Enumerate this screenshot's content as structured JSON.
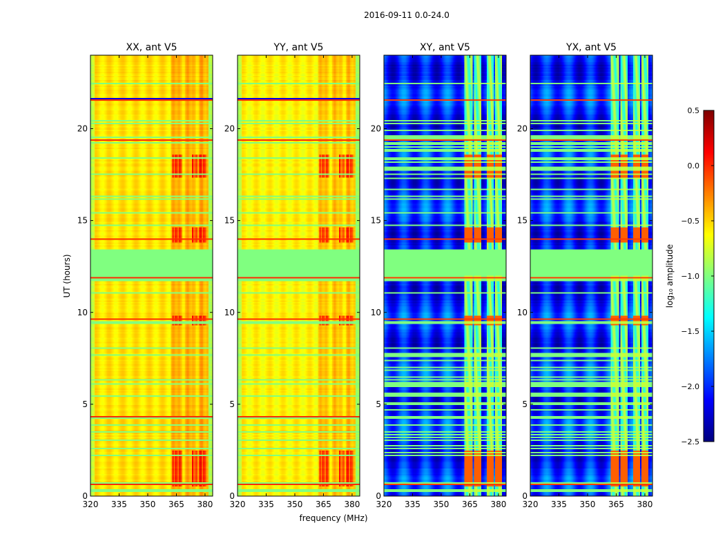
{
  "chart_data": {
    "type": "heatmap",
    "suptitle": "2016-09-11 0.0-24.0",
    "xlabel": "frequency (MHz)",
    "ylabel": "UT (hours)",
    "xlim": [
      320,
      384
    ],
    "ylim": [
      0,
      24
    ],
    "xticks": [
      "320",
      "335",
      "350",
      "365",
      "380"
    ],
    "yticks": [
      "0",
      "5",
      "10",
      "15",
      "20"
    ],
    "colormap": "jet",
    "colorbar": {
      "label": "log₁₀ amplitude",
      "range": [
        -2.5,
        0.5
      ],
      "ticks": [
        "0.5",
        "0.0",
        "−0.5",
        "−1.0",
        "−1.5",
        "−2.0",
        "−2.5"
      ]
    },
    "panels": [
      {
        "title": "XX, ant V5",
        "kind": "parallel",
        "base_log_amp": -0.55,
        "flagged_gap_hours": [
          12.0,
          13.4
        ],
        "rfi_band_mhz": [
          362,
          382
        ]
      },
      {
        "title": "YY, ant V5",
        "kind": "parallel",
        "base_log_amp": -0.6,
        "flagged_gap_hours": [
          12.0,
          13.4
        ],
        "rfi_band_mhz": [
          362,
          382
        ]
      },
      {
        "title": "XY, ant V5",
        "kind": "cross",
        "base_log_amp": -2.0,
        "flagged_gap_hours": [
          12.0,
          13.4
        ],
        "rfi_band_mhz": [
          362,
          382
        ]
      },
      {
        "title": "YX, ant V5",
        "kind": "cross",
        "base_log_amp": -2.0,
        "flagged_gap_hours": [
          12.0,
          13.4
        ],
        "rfi_band_mhz": [
          362,
          382
        ]
      }
    ]
  }
}
